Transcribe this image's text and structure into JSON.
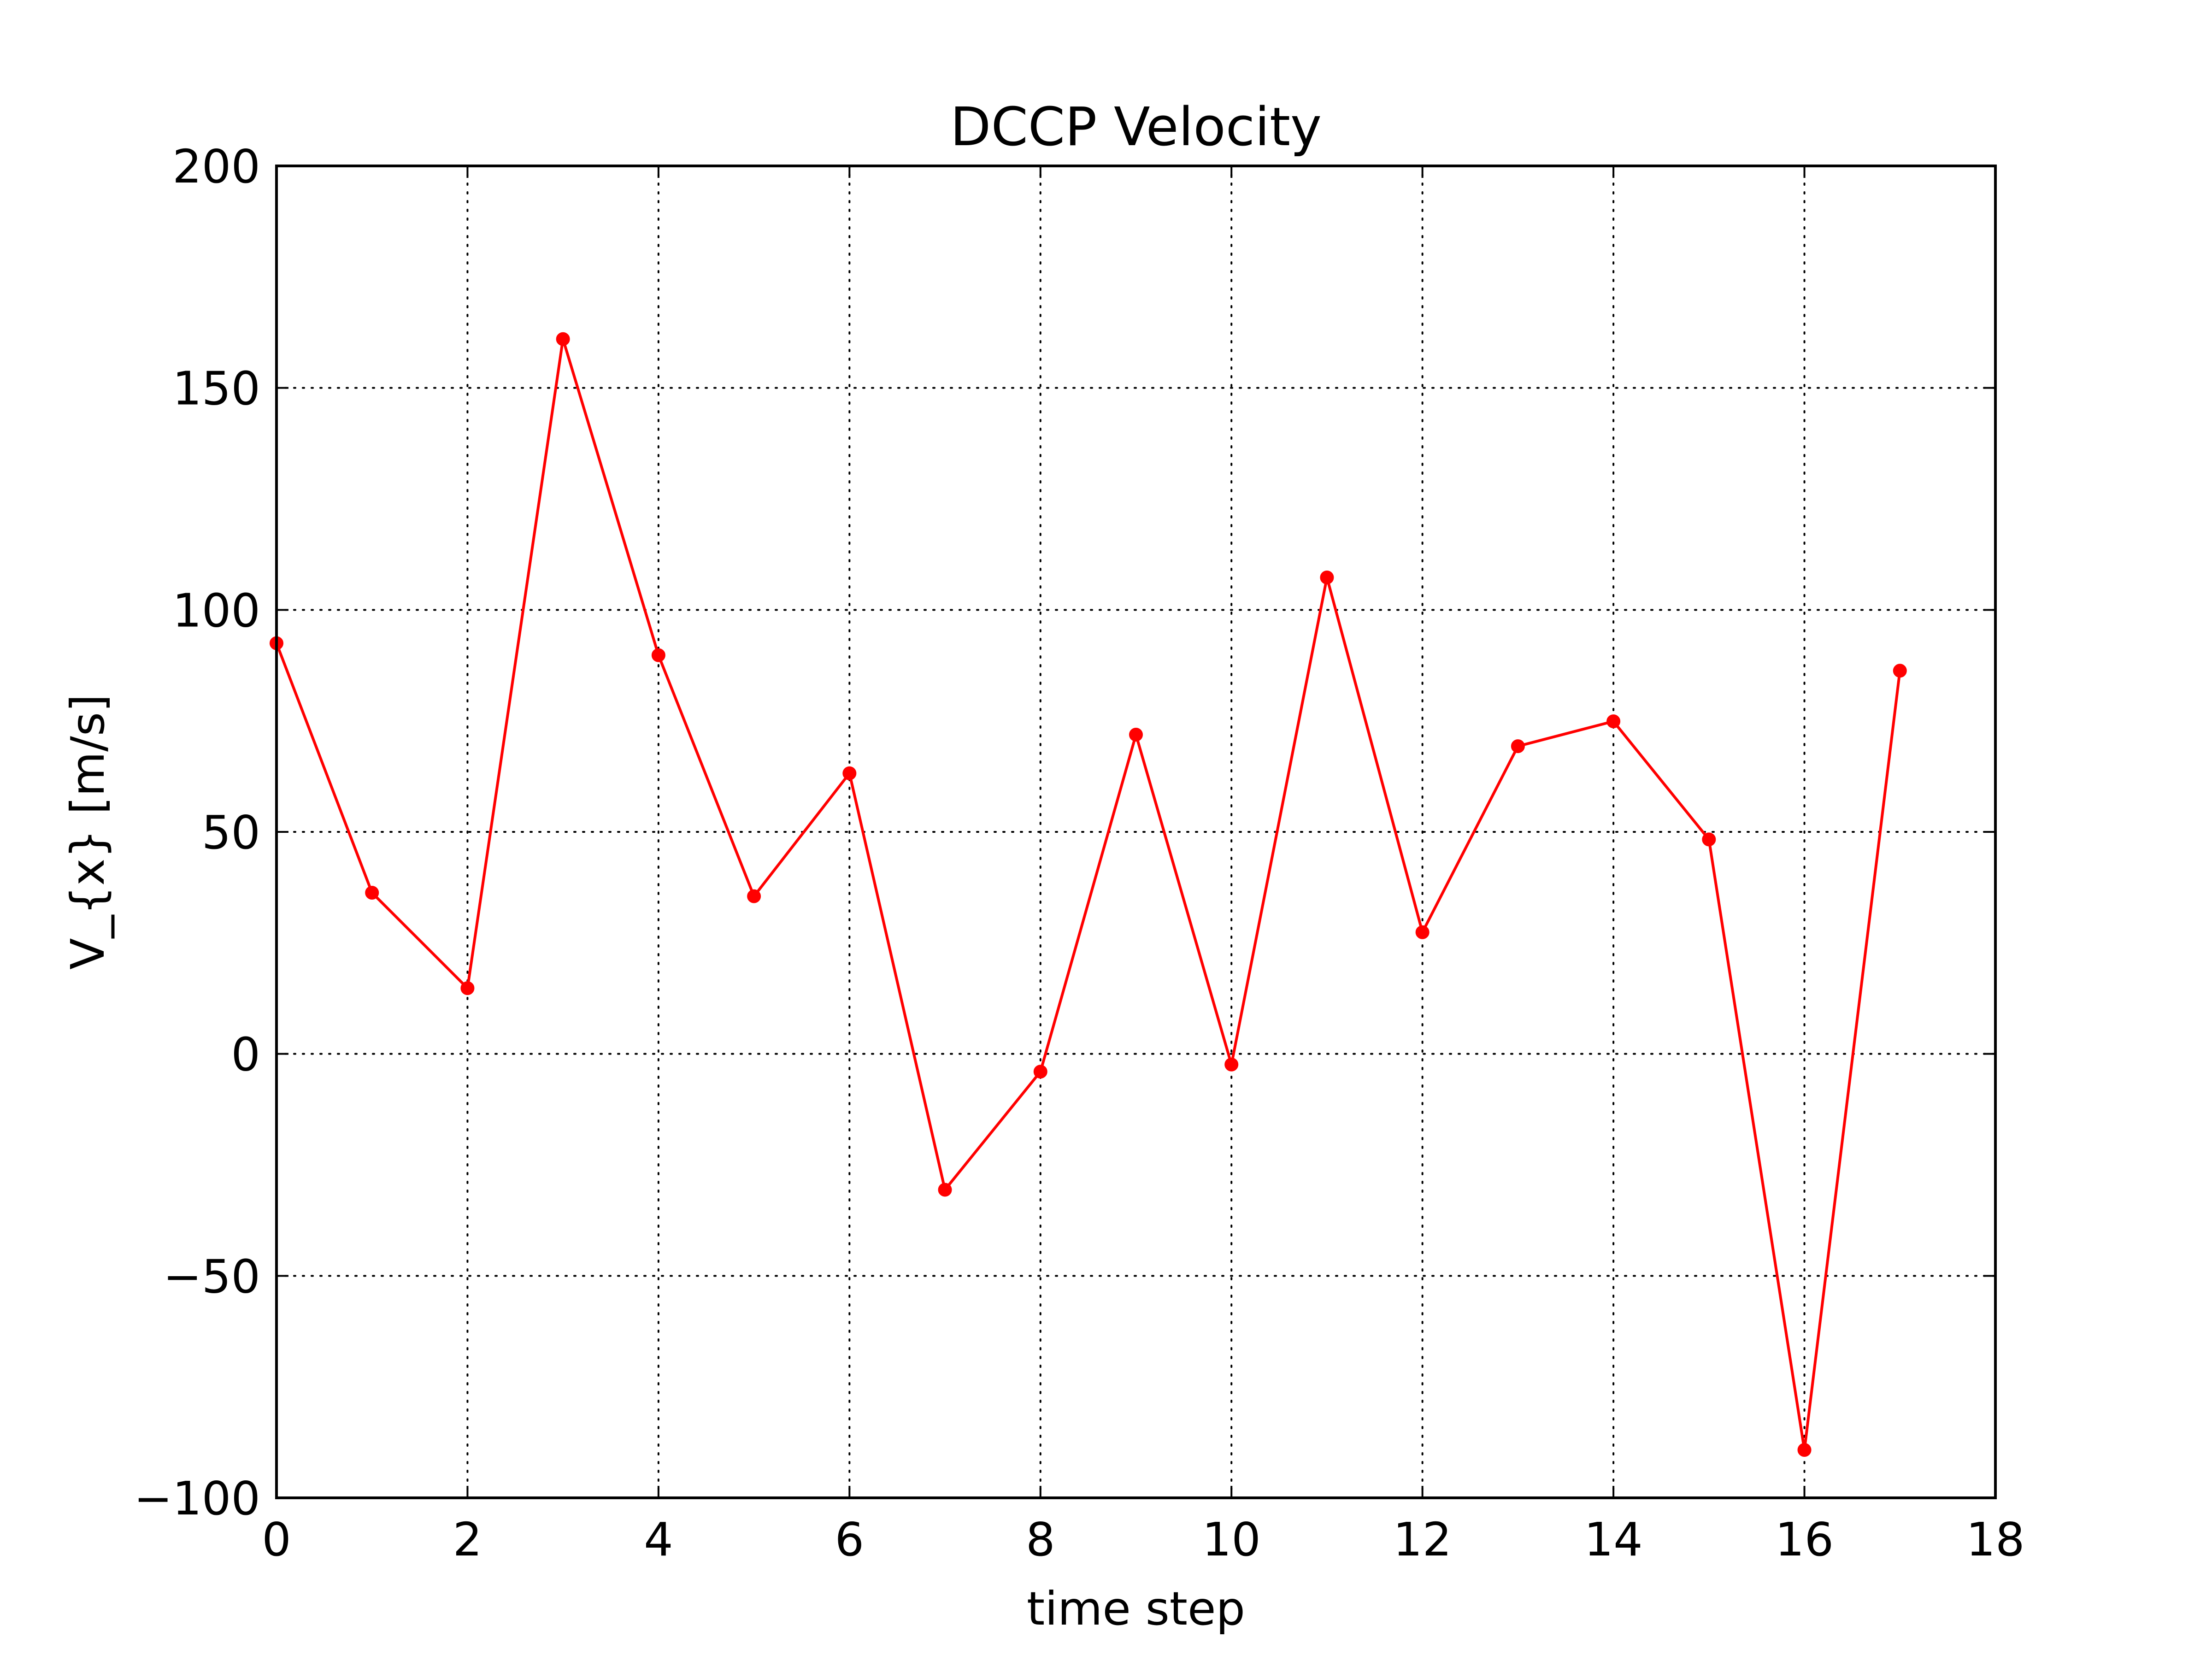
{
  "chart_data": {
    "type": "line",
    "title": "DCCP Velocity",
    "xlabel": "time step",
    "ylabel": "V_{x} [m/s]",
    "xlim": [
      0,
      18
    ],
    "ylim": [
      -100,
      200
    ],
    "xticks": [
      0,
      2,
      4,
      6,
      8,
      10,
      12,
      14,
      16,
      18
    ],
    "xtick_labels": [
      "0",
      "2",
      "4",
      "6",
      "8",
      "10",
      "12",
      "14",
      "16",
      "18"
    ],
    "yticks": [
      -100,
      -50,
      0,
      50,
      100,
      150,
      200
    ],
    "ytick_labels": [
      "−100",
      "−50",
      "0",
      "50",
      "100",
      "150",
      "200"
    ],
    "grid": true,
    "grid_style": "dotted",
    "series": [
      {
        "color": "#ff0000",
        "marker": "circle",
        "x": [
          0,
          1,
          2,
          3,
          4,
          5,
          6,
          7,
          8,
          9,
          10,
          11,
          12,
          13,
          14,
          15,
          16,
          17
        ],
        "y": [
          92.5,
          36.3,
          14.8,
          161.0,
          89.8,
          35.5,
          63.2,
          -30.6,
          -4.0,
          71.9,
          -2.4,
          107.3,
          27.4,
          69.3,
          74.9,
          48.3,
          -89.2,
          86.3
        ]
      }
    ]
  }
}
